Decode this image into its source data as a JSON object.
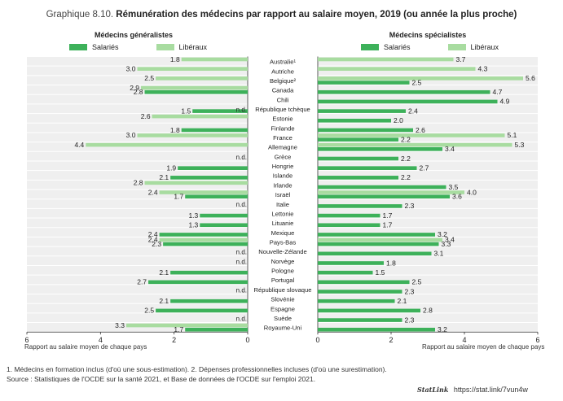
{
  "title": {
    "prefix": "Graphique 8.10.",
    "main": "Rémunération des médecins par rapport au salaire moyen, 2019 (ou année la plus proche)"
  },
  "colors": {
    "salaries": "#3db15a",
    "liberaux": "#a8dca0",
    "band": "#efefef",
    "grid": "#ffffff"
  },
  "legend": {
    "salaries": "Salariés",
    "liberaux": "Libéraux"
  },
  "footnotes": {
    "notes": "1. Médecins en formation inclus (d'où une sous-estimation). 2. Dépenses professionnelles incluses (d'où une surestimation).",
    "source": "Source : Statistiques de l'OCDE sur la santé 2021, et Base de données de l'OCDE sur l'emploi 2021."
  },
  "statlink": {
    "brand": "StatLink",
    "url": "https://stat.link/7vun4w"
  },
  "chart_data": [
    {
      "type": "bar",
      "orientation": "horizontal",
      "title": "Médecins généralistes",
      "xlabel": "Rapport au salaire moyen de chaque pays",
      "xlim": [
        6,
        0
      ],
      "xticks": [
        6,
        4,
        2,
        0
      ],
      "missing_label": "n.d.",
      "categories": [
        "Australie¹",
        "Autriche",
        "Belgique²",
        "Canada",
        "Chili",
        "République tchèque",
        "Estonie",
        "Finlande",
        "France",
        "Allemagne",
        "Grèce",
        "Hongrie",
        "Islande",
        "Irlande",
        "Israël",
        "Italie",
        "Lettonie",
        "Lituanie",
        "Mexique",
        "Pays-Bas",
        "Nouvelle-Zélande",
        "Norvège",
        "Pologne",
        "Portugal",
        "République slovaque",
        "Slovénie",
        "Espagne",
        "Suède",
        "Royaume-Uni"
      ],
      "series": [
        {
          "name": "Salariés",
          "values": [
            null,
            null,
            null,
            2.8,
            null,
            1.5,
            null,
            1.8,
            null,
            null,
            null,
            1.9,
            2.1,
            null,
            1.7,
            null,
            1.3,
            1.3,
            2.4,
            2.3,
            null,
            null,
            2.1,
            2.7,
            null,
            2.1,
            2.5,
            null,
            1.7
          ]
        },
        {
          "name": "Libéraux",
          "values": [
            1.8,
            3.0,
            2.5,
            2.9,
            null,
            null,
            2.6,
            null,
            3.0,
            4.4,
            null,
            null,
            null,
            2.8,
            2.4,
            null,
            null,
            null,
            null,
            2.4,
            null,
            null,
            null,
            null,
            null,
            null,
            null,
            null,
            3.3
          ]
        }
      ],
      "nd": [
        false,
        false,
        false,
        false,
        false,
        true,
        false,
        false,
        false,
        false,
        true,
        false,
        false,
        false,
        false,
        true,
        false,
        false,
        false,
        false,
        true,
        true,
        false,
        false,
        true,
        false,
        false,
        true,
        false
      ]
    },
    {
      "type": "bar",
      "orientation": "horizontal",
      "title": "Médecins spécialistes",
      "xlabel": "Rapport au salaire moyen de chaque pays",
      "xlim": [
        0,
        6
      ],
      "xticks": [
        0,
        2,
        4,
        6
      ],
      "categories": [
        "Australie¹",
        "Autriche",
        "Belgique²",
        "Canada",
        "Chili",
        "République tchèque",
        "Estonie",
        "Finlande",
        "France",
        "Allemagne",
        "Grèce",
        "Hongrie",
        "Islande",
        "Irlande",
        "Israël",
        "Italie",
        "Lettonie",
        "Lituanie",
        "Mexique",
        "Pays-Bas",
        "Nouvelle-Zélande",
        "Norvège",
        "Pologne",
        "Portugal",
        "République slovaque",
        "Slovénie",
        "Espagne",
        "Suède",
        "Royaume-Uni"
      ],
      "series": [
        {
          "name": "Salariés",
          "values": [
            null,
            null,
            2.5,
            4.7,
            4.9,
            2.4,
            2.0,
            2.6,
            2.2,
            3.4,
            2.2,
            2.7,
            2.2,
            3.5,
            3.6,
            2.3,
            1.7,
            1.7,
            3.2,
            3.3,
            3.1,
            1.8,
            1.5,
            2.5,
            2.3,
            2.1,
            2.8,
            2.3,
            3.2
          ]
        },
        {
          "name": "Libéraux",
          "values": [
            3.7,
            4.3,
            5.6,
            null,
            null,
            null,
            null,
            null,
            5.1,
            5.3,
            null,
            null,
            null,
            null,
            4.0,
            null,
            null,
            null,
            null,
            3.4,
            null,
            null,
            null,
            null,
            null,
            null,
            null,
            null,
            null
          ]
        }
      ]
    }
  ]
}
